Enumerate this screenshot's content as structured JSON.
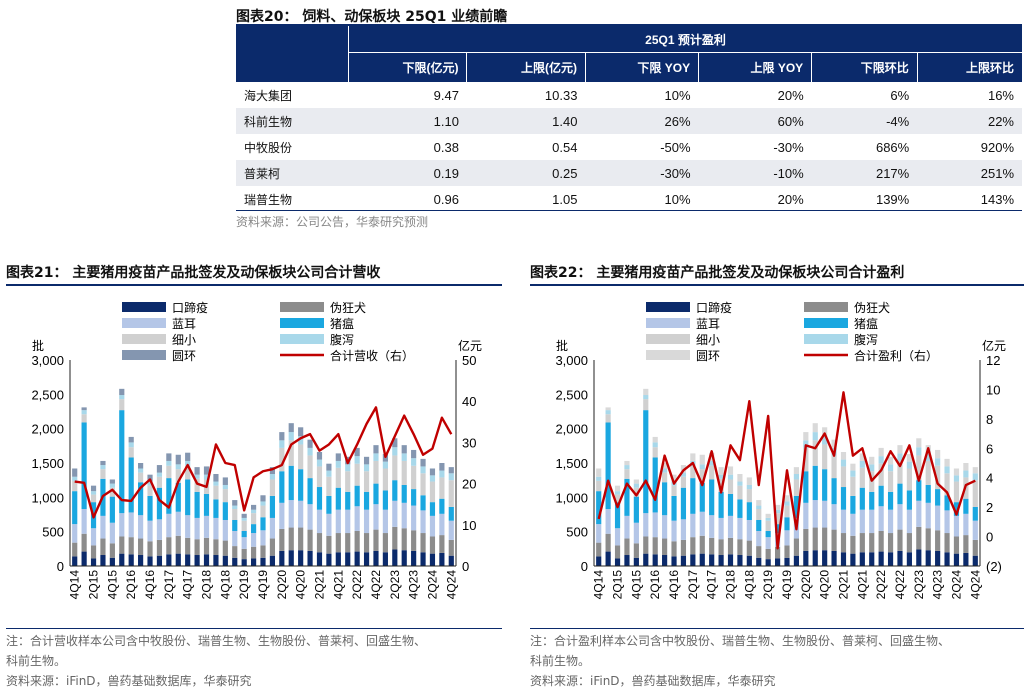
{
  "table20": {
    "title": "图表20：  饲料、动保板块 25Q1 业绩前瞻",
    "group_header": "25Q1 预计盈利",
    "columns": [
      "下限(亿元)",
      "上限(亿元)",
      "下限 YOY",
      "上限 YOY",
      "下限环比",
      "上限环比"
    ],
    "rows": [
      {
        "name": "海大集团",
        "cells": [
          "9.47",
          "10.33",
          "10%",
          "20%",
          "6%",
          "16%"
        ]
      },
      {
        "name": "科前生物",
        "cells": [
          "1.10",
          "1.40",
          "26%",
          "60%",
          "-4%",
          "22%"
        ]
      },
      {
        "name": "中牧股份",
        "cells": [
          "0.38",
          "0.54",
          "-50%",
          "-30%",
          "686%",
          "920%"
        ]
      },
      {
        "name": "普莱柯",
        "cells": [
          "0.19",
          "0.25",
          "-30%",
          "-10%",
          "217%",
          "251%"
        ]
      },
      {
        "name": "瑞普生物",
        "cells": [
          "0.96",
          "1.05",
          "10%",
          "20%",
          "139%",
          "143%"
        ]
      }
    ],
    "source": "资料来源：公司公告，华泰研究预测",
    "header_color": "#0b2a6b",
    "stripe_color": "#e9ebf0"
  },
  "chart21": {
    "title": "图表21：  主要猪用疫苗产品批签发及动保板块公司合计营收",
    "note": "注：合计营收样本公司含中牧股份、瑞普生物、生物股份、普莱柯、回盛生物、",
    "note2": "科前生物。",
    "source": "资料来源：iFinD，兽药基础数据库，华泰研究"
  },
  "chart22": {
    "title": "图表22：  主要猪用疫苗产品批签发及动保板块公司合计盈利",
    "note": "注：合计盈利样本公司含中牧股份、瑞普生物、生物股份、普莱柯、回盛生物、",
    "note2": "科前生物。",
    "source": "资料来源：iFinD，兽药基础数据库，华泰研究"
  },
  "chart_data": [
    {
      "type": "bar",
      "stacked": true,
      "title": "",
      "ylabel": "批",
      "y2label": "亿元",
      "ylim": [
        0,
        3000
      ],
      "y2lim": [
        0,
        50
      ],
      "yticks": [
        "0",
        "500",
        "1,000",
        "1,500",
        "2,000",
        "2,500",
        "3,000"
      ],
      "y2ticks": [
        "0",
        "10",
        "20",
        "30",
        "40",
        "50"
      ],
      "categories": [
        "4Q14",
        "1Q15",
        "2Q15",
        "3Q15",
        "4Q15",
        "1Q16",
        "2Q16",
        "3Q16",
        "4Q16",
        "1Q17",
        "2Q17",
        "3Q17",
        "4Q17",
        "1Q18",
        "2Q18",
        "3Q18",
        "4Q18",
        "1Q19",
        "2Q19",
        "3Q19",
        "4Q19",
        "1Q20",
        "2Q20",
        "3Q20",
        "4Q20",
        "1Q21",
        "2Q21",
        "3Q21",
        "4Q21",
        "1Q22",
        "2Q22",
        "3Q22",
        "4Q22",
        "1Q23",
        "2Q23",
        "3Q23",
        "4Q23",
        "1Q24",
        "2Q24",
        "3Q24",
        "4Q24"
      ],
      "tick_labels": [
        "4Q14",
        "2Q15",
        "4Q15",
        "2Q16",
        "4Q16",
        "2Q17",
        "4Q17",
        "2Q18",
        "4Q18",
        "2Q19",
        "4Q19",
        "2Q20",
        "4Q20",
        "2Q21",
        "4Q21",
        "2Q22",
        "4Q22",
        "2Q23",
        "4Q23",
        "2Q24",
        "4Q24"
      ],
      "series": [
        {
          "name": "口蹄疫",
          "color": "#0b2a6b",
          "values": [
            140,
            210,
            110,
            160,
            120,
            180,
            170,
            160,
            140,
            150,
            170,
            180,
            170,
            160,
            170,
            160,
            150,
            120,
            100,
            110,
            120,
            150,
            220,
            230,
            230,
            220,
            200,
            180,
            200,
            200,
            210,
            200,
            220,
            200,
            240,
            230,
            220,
            200,
            180,
            190,
            150
          ]
        },
        {
          "name": "伪狂犬",
          "color": "#8c8c8c",
          "values": [
            200,
            260,
            190,
            240,
            210,
            250,
            250,
            240,
            220,
            230,
            250,
            260,
            240,
            230,
            240,
            230,
            220,
            170,
            150,
            170,
            180,
            250,
            320,
            330,
            330,
            310,
            280,
            260,
            280,
            280,
            300,
            280,
            310,
            280,
            330,
            320,
            300,
            280,
            250,
            260,
            230
          ]
        },
        {
          "name": "蓝耳",
          "color": "#b4c6e7",
          "values": [
            270,
            360,
            250,
            330,
            300,
            340,
            360,
            340,
            300,
            300,
            340,
            350,
            330,
            310,
            320,
            310,
            300,
            220,
            170,
            200,
            220,
            300,
            380,
            400,
            390,
            370,
            340,
            320,
            340,
            340,
            360,
            340,
            370,
            340,
            380,
            370,
            360,
            330,
            300,
            310,
            280
          ]
        },
        {
          "name": "猪瘟",
          "color": "#1aa7e0",
          "values": [
            480,
            1260,
            380,
            540,
            380,
            1500,
            800,
            480,
            360,
            460,
            520,
            420,
            520,
            380,
            320,
            270,
            260,
            160,
            90,
            130,
            190,
            320,
            460,
            500,
            460,
            380,
            330,
            260,
            320,
            260,
            300,
            260,
            300,
            280,
            300,
            260,
            240,
            220,
            200,
            220,
            200
          ]
        },
        {
          "name": "细小",
          "color": "#d0d0d0",
          "values": [
            150,
            120,
            110,
            140,
            130,
            160,
            150,
            140,
            150,
            160,
            180,
            200,
            200,
            190,
            210,
            200,
            190,
            160,
            150,
            160,
            170,
            240,
            340,
            370,
            360,
            330,
            300,
            280,
            290,
            300,
            320,
            300,
            330,
            320,
            360,
            350,
            340,
            320,
            300,
            310,
            390
          ]
        },
        {
          "name": "腹泻",
          "color": "#a8d8ea",
          "values": [
            60,
            60,
            50,
            60,
            60,
            60,
            70,
            60,
            60,
            60,
            70,
            70,
            70,
            60,
            70,
            60,
            60,
            50,
            40,
            50,
            60,
            80,
            110,
            120,
            120,
            110,
            100,
            90,
            100,
            100,
            110,
            100,
            110,
            100,
            120,
            110,
            110,
            100,
            90,
            100,
            100
          ]
        },
        {
          "name": "圆环",
          "color": "#8496b0",
          "values": [
            120,
            40,
            80,
            60,
            60,
            90,
            80,
            80,
            100,
            110,
            110,
            140,
            120,
            110,
            120,
            110,
            110,
            80,
            60,
            70,
            90,
            100,
            120,
            130,
            130,
            120,
            110,
            100,
            110,
            110,
            120,
            110,
            120,
            110,
            130,
            120,
            120,
            110,
            100,
            110,
            90
          ]
        }
      ],
      "line": {
        "name": "合计营收（右）",
        "color": "#c00000",
        "axis": "right",
        "values": [
          20.5,
          20.2,
          11.8,
          17.0,
          18.5,
          16.0,
          15.8,
          19.0,
          21.0,
          16.0,
          14.2,
          20.5,
          24.5,
          20.0,
          19.2,
          29.5,
          25.0,
          24.5,
          13.5,
          21.5,
          23.0,
          23.5,
          24.5,
          29.5,
          31.0,
          32.0,
          28.0,
          29.5,
          32.0,
          25.0,
          29.5,
          34.5,
          38.5,
          26.5,
          31.5,
          36.5,
          32.0,
          27.0,
          28.5,
          36.0,
          32.0
        ]
      },
      "legend_entries": [
        "口蹄疫",
        "伪狂犬",
        "蓝耳",
        "猪瘟",
        "细小",
        "腹泻",
        "圆环",
        "合计营收（右）"
      ]
    },
    {
      "type": "bar",
      "stacked": true,
      "title": "",
      "ylabel": "批",
      "y2label": "亿元",
      "ylim": [
        0,
        3000
      ],
      "y2lim": [
        -2,
        12
      ],
      "yticks": [
        "0",
        "500",
        "1,000",
        "1,500",
        "2,000",
        "2,500",
        "3,000"
      ],
      "y2ticks": [
        "(2)",
        "0",
        "2",
        "4",
        "6",
        "8",
        "10",
        "12"
      ],
      "categories": [
        "4Q14",
        "1Q15",
        "2Q15",
        "3Q15",
        "4Q15",
        "1Q16",
        "2Q16",
        "3Q16",
        "4Q16",
        "1Q17",
        "2Q17",
        "3Q17",
        "4Q17",
        "1Q18",
        "2Q18",
        "3Q18",
        "4Q18",
        "1Q19",
        "2Q19",
        "3Q19",
        "4Q19",
        "1Q20",
        "2Q20",
        "3Q20",
        "4Q20",
        "1Q21",
        "2Q21",
        "3Q21",
        "4Q21",
        "1Q22",
        "2Q22",
        "3Q22",
        "4Q22",
        "1Q23",
        "2Q23",
        "3Q23",
        "4Q23",
        "1Q24",
        "2Q24",
        "3Q24",
        "4Q24"
      ],
      "tick_labels": [
        "4Q14",
        "2Q15",
        "4Q15",
        "2Q16",
        "4Q16",
        "2Q17",
        "4Q17",
        "2Q18",
        "4Q18",
        "2Q19",
        "4Q19",
        "2Q20",
        "4Q20",
        "2Q21",
        "4Q21",
        "2Q22",
        "4Q22",
        "2Q23",
        "4Q23",
        "2Q24",
        "4Q24"
      ],
      "series": [
        {
          "name": "口蹄疫",
          "color": "#0b2a6b",
          "values": [
            140,
            210,
            110,
            160,
            120,
            180,
            170,
            160,
            140,
            150,
            170,
            180,
            170,
            160,
            170,
            160,
            150,
            120,
            100,
            110,
            120,
            150,
            220,
            230,
            230,
            220,
            200,
            180,
            200,
            200,
            210,
            200,
            220,
            200,
            240,
            230,
            220,
            200,
            180,
            190,
            150
          ]
        },
        {
          "name": "伪狂犬",
          "color": "#8c8c8c",
          "values": [
            200,
            260,
            190,
            240,
            210,
            250,
            250,
            240,
            220,
            230,
            250,
            260,
            240,
            230,
            240,
            230,
            220,
            170,
            150,
            170,
            180,
            250,
            320,
            330,
            330,
            310,
            280,
            260,
            280,
            280,
            300,
            280,
            310,
            280,
            330,
            320,
            300,
            280,
            250,
            260,
            230
          ]
        },
        {
          "name": "蓝耳",
          "color": "#b4c6e7",
          "values": [
            270,
            360,
            250,
            330,
            300,
            340,
            360,
            340,
            300,
            300,
            340,
            350,
            330,
            310,
            320,
            310,
            300,
            220,
            170,
            200,
            220,
            300,
            380,
            400,
            390,
            370,
            340,
            320,
            340,
            340,
            360,
            340,
            370,
            340,
            380,
            370,
            360,
            330,
            300,
            310,
            280
          ]
        },
        {
          "name": "猪瘟",
          "color": "#1aa7e0",
          "values": [
            480,
            1260,
            380,
            540,
            380,
            1500,
            800,
            480,
            360,
            460,
            520,
            420,
            520,
            380,
            320,
            270,
            260,
            160,
            90,
            130,
            190,
            320,
            460,
            500,
            460,
            380,
            330,
            260,
            320,
            260,
            300,
            260,
            300,
            280,
            300,
            260,
            240,
            220,
            200,
            220,
            200
          ]
        },
        {
          "name": "细小",
          "color": "#d0d0d0",
          "values": [
            150,
            120,
            110,
            140,
            130,
            160,
            150,
            140,
            150,
            160,
            180,
            200,
            200,
            190,
            210,
            200,
            190,
            160,
            150,
            160,
            170,
            240,
            340,
            370,
            360,
            330,
            300,
            280,
            290,
            300,
            320,
            300,
            330,
            320,
            360,
            350,
            340,
            320,
            300,
            310,
            390
          ]
        },
        {
          "name": "腹泻",
          "color": "#a8d8ea",
          "values": [
            60,
            60,
            50,
            60,
            60,
            60,
            70,
            60,
            60,
            60,
            70,
            70,
            70,
            60,
            70,
            60,
            60,
            50,
            40,
            50,
            60,
            80,
            110,
            120,
            120,
            110,
            100,
            90,
            100,
            100,
            110,
            100,
            110,
            100,
            120,
            110,
            110,
            100,
            90,
            100,
            100
          ]
        },
        {
          "name": "圆环",
          "color": "#d9d9d9",
          "values": [
            120,
            40,
            80,
            60,
            60,
            90,
            80,
            80,
            100,
            110,
            110,
            140,
            120,
            110,
            120,
            110,
            110,
            80,
            60,
            70,
            90,
            100,
            120,
            130,
            130,
            120,
            110,
            100,
            110,
            110,
            120,
            110,
            120,
            110,
            130,
            120,
            120,
            110,
            100,
            110,
            90
          ]
        }
      ],
      "line": {
        "name": "合计盈利（右）",
        "color": "#c00000",
        "axis": "right",
        "values": [
          1.2,
          3.8,
          2.0,
          3.6,
          2.8,
          3.8,
          2.5,
          5.5,
          3.6,
          4.5,
          5.0,
          3.5,
          5.8,
          3.0,
          6.2,
          5.2,
          9.2,
          3.5,
          8.2,
          -0.8,
          4.5,
          0.5,
          6.2,
          6.0,
          7.0,
          5.5,
          9.8,
          5.5,
          6.0,
          3.8,
          4.5,
          5.8,
          4.8,
          6.2,
          3.8,
          6.0,
          3.6,
          3.0,
          1.5,
          3.5,
          3.8
        ]
      },
      "legend_entries": [
        "口蹄疫",
        "伪狂犬",
        "蓝耳",
        "猪瘟",
        "细小",
        "腹泻",
        "圆环",
        "合计盈利（右）"
      ]
    }
  ]
}
